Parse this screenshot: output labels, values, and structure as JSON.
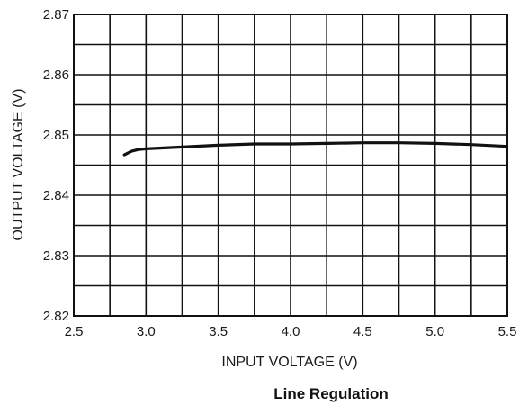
{
  "chart_data": {
    "type": "line",
    "title": "Line Regulation",
    "xlabel": "INPUT VOLTAGE (V)",
    "ylabel": "OUTPUT VOLTAGE (V)",
    "xlim": [
      2.5,
      5.5
    ],
    "ylim": [
      2.82,
      2.87
    ],
    "x_ticks": [
      2.5,
      3.0,
      3.5,
      4.0,
      4.5,
      5.0,
      5.5
    ],
    "x_tick_labels": [
      "2.5",
      "3.0",
      "3.5",
      "4.0",
      "4.5",
      "5.0",
      "5.5"
    ],
    "y_ticks": [
      2.82,
      2.83,
      2.84,
      2.85,
      2.86,
      2.87
    ],
    "y_tick_labels": [
      "2.82",
      "2.83",
      "2.84",
      "2.85",
      "2.86",
      "2.87"
    ],
    "grid": true,
    "x_minor_step": 0.25,
    "y_minor_step": 0.005,
    "series": [
      {
        "x": [
          2.85,
          2.9,
          2.95,
          3.0,
          3.25,
          3.5,
          3.75,
          4.0,
          4.25,
          4.5,
          4.75,
          5.0,
          5.25,
          5.5
        ],
        "y": [
          2.8467,
          2.8473,
          2.8476,
          2.8477,
          2.848,
          2.8483,
          2.8485,
          2.8485,
          2.8486,
          2.8487,
          2.8487,
          2.8486,
          2.8484,
          2.8481
        ]
      }
    ],
    "line_color": "#111111",
    "grid_color": "#111111"
  }
}
